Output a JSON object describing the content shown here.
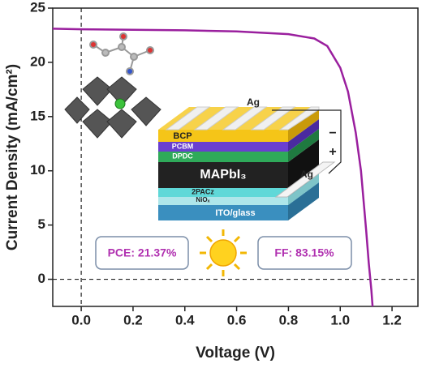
{
  "chart_data": {
    "type": "line",
    "xlabel": "Voltage (V)",
    "ylabel": "Current Density (mA/cm²)",
    "x": [
      -0.11,
      0,
      0.2,
      0.4,
      0.6,
      0.8,
      0.9,
      0.95,
      1.0,
      1.03,
      1.06,
      1.08,
      1.1,
      1.11,
      1.12,
      1.125
    ],
    "values": [
      23.1,
      23.05,
      23.0,
      22.95,
      22.85,
      22.6,
      22.2,
      21.5,
      19.5,
      17.3,
      13.5,
      10,
      4.5,
      1.5,
      -1,
      -2.5
    ],
    "color": "#9a1f9e",
    "xlim": [
      -0.11,
      1.3
    ],
    "ylim": [
      -2.5,
      25
    ],
    "xticks": [
      {
        "value": 0,
        "label": "0.0"
      },
      0.2,
      0.4,
      0.6,
      0.8,
      {
        "value": 1,
        "label": "1.0"
      },
      1.2
    ],
    "yticks": [
      0,
      5,
      10,
      15,
      20,
      25
    ],
    "annotations": [
      "PCE: 21.37%",
      "FF: 83.15%"
    ]
  },
  "schematic": {
    "labels": [
      "Ag",
      "BCP",
      "PCBM",
      "DPDC",
      "MAPbI₃",
      "2PACz",
      "NiOₓ",
      "ITO/glass",
      "Ag",
      "−",
      "+"
    ]
  }
}
